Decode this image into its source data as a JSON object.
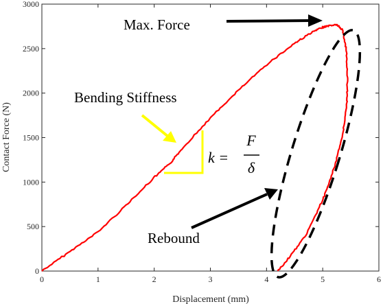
{
  "chart_data": {
    "type": "line",
    "xlabel": "Displacement (mm)",
    "ylabel": "Contact Force (N)",
    "xlim": [
      0,
      6
    ],
    "ylim": [
      0,
      3000
    ],
    "xticks": [
      "0",
      "1",
      "2",
      "3",
      "4",
      "5",
      "6"
    ],
    "yticks": [
      "0",
      "500",
      "1000",
      "1500",
      "2000",
      "2500",
      "3000"
    ],
    "grid": false,
    "series": [
      {
        "color": "#ff0000",
        "x": [
          0.0,
          0.5,
          1.0,
          1.5,
          2.0,
          2.3,
          2.5,
          3.0,
          3.5,
          4.0,
          4.5,
          4.8,
          5.0,
          5.1,
          5.25,
          5.35,
          5.42,
          5.44,
          5.43,
          5.35,
          5.2,
          5.0,
          4.7,
          4.4,
          4.2
        ],
        "y": [
          0,
          220,
          440,
          740,
          1050,
          1220,
          1380,
          1720,
          2030,
          2320,
          2560,
          2680,
          2740,
          2755,
          2770,
          2710,
          2500,
          2200,
          1900,
          1500,
          1150,
          800,
          400,
          150,
          0
        ]
      }
    ],
    "annotations": [
      {
        "text": "Max. Force",
        "points_to": [
          5.15,
          2770
        ]
      },
      {
        "text": "Bending Stiffness",
        "points_to": [
          2.3,
          1400
        ]
      },
      {
        "text": "Rebound",
        "points_to": [
          4.3,
          900
        ]
      }
    ],
    "formula": {
      "lhs": "k =",
      "numerator": "F",
      "denominator": "δ"
    },
    "colors": {
      "curve": "#ff0000",
      "stiffness_marker": "#ffff00",
      "arrows": "#000000"
    }
  }
}
